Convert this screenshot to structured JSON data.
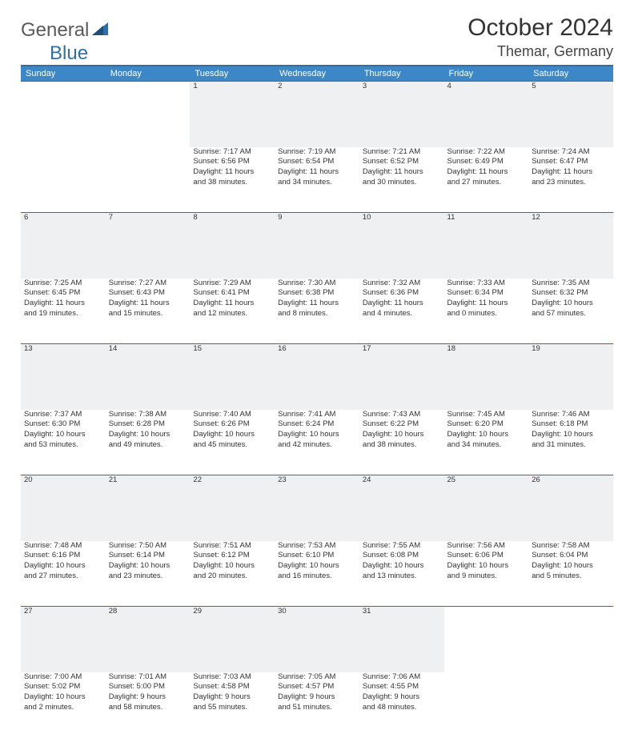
{
  "brand": {
    "part1": "General",
    "part2": "Blue"
  },
  "title": "October 2024",
  "location": "Themar, Germany",
  "colors": {
    "header_bg": "#3b87c8",
    "rule": "#2f6fa8",
    "daynum_bg": "#eef0f2",
    "text": "#333333",
    "muted": "#5a5a5a"
  },
  "dayNames": [
    "Sunday",
    "Monday",
    "Tuesday",
    "Wednesday",
    "Thursday",
    "Friday",
    "Saturday"
  ],
  "weeks": [
    {
      "nums": [
        "",
        "",
        "1",
        "2",
        "3",
        "4",
        "5"
      ],
      "cells": [
        null,
        null,
        {
          "sunrise": "Sunrise: 7:17 AM",
          "sunset": "Sunset: 6:56 PM",
          "day1": "Daylight: 11 hours",
          "day2": "and 38 minutes."
        },
        {
          "sunrise": "Sunrise: 7:19 AM",
          "sunset": "Sunset: 6:54 PM",
          "day1": "Daylight: 11 hours",
          "day2": "and 34 minutes."
        },
        {
          "sunrise": "Sunrise: 7:21 AM",
          "sunset": "Sunset: 6:52 PM",
          "day1": "Daylight: 11 hours",
          "day2": "and 30 minutes."
        },
        {
          "sunrise": "Sunrise: 7:22 AM",
          "sunset": "Sunset: 6:49 PM",
          "day1": "Daylight: 11 hours",
          "day2": "and 27 minutes."
        },
        {
          "sunrise": "Sunrise: 7:24 AM",
          "sunset": "Sunset: 6:47 PM",
          "day1": "Daylight: 11 hours",
          "day2": "and 23 minutes."
        }
      ]
    },
    {
      "nums": [
        "6",
        "7",
        "8",
        "9",
        "10",
        "11",
        "12"
      ],
      "cells": [
        {
          "sunrise": "Sunrise: 7:25 AM",
          "sunset": "Sunset: 6:45 PM",
          "day1": "Daylight: 11 hours",
          "day2": "and 19 minutes."
        },
        {
          "sunrise": "Sunrise: 7:27 AM",
          "sunset": "Sunset: 6:43 PM",
          "day1": "Daylight: 11 hours",
          "day2": "and 15 minutes."
        },
        {
          "sunrise": "Sunrise: 7:29 AM",
          "sunset": "Sunset: 6:41 PM",
          "day1": "Daylight: 11 hours",
          "day2": "and 12 minutes."
        },
        {
          "sunrise": "Sunrise: 7:30 AM",
          "sunset": "Sunset: 6:38 PM",
          "day1": "Daylight: 11 hours",
          "day2": "and 8 minutes."
        },
        {
          "sunrise": "Sunrise: 7:32 AM",
          "sunset": "Sunset: 6:36 PM",
          "day1": "Daylight: 11 hours",
          "day2": "and 4 minutes."
        },
        {
          "sunrise": "Sunrise: 7:33 AM",
          "sunset": "Sunset: 6:34 PM",
          "day1": "Daylight: 11 hours",
          "day2": "and 0 minutes."
        },
        {
          "sunrise": "Sunrise: 7:35 AM",
          "sunset": "Sunset: 6:32 PM",
          "day1": "Daylight: 10 hours",
          "day2": "and 57 minutes."
        }
      ]
    },
    {
      "nums": [
        "13",
        "14",
        "15",
        "16",
        "17",
        "18",
        "19"
      ],
      "cells": [
        {
          "sunrise": "Sunrise: 7:37 AM",
          "sunset": "Sunset: 6:30 PM",
          "day1": "Daylight: 10 hours",
          "day2": "and 53 minutes."
        },
        {
          "sunrise": "Sunrise: 7:38 AM",
          "sunset": "Sunset: 6:28 PM",
          "day1": "Daylight: 10 hours",
          "day2": "and 49 minutes."
        },
        {
          "sunrise": "Sunrise: 7:40 AM",
          "sunset": "Sunset: 6:26 PM",
          "day1": "Daylight: 10 hours",
          "day2": "and 45 minutes."
        },
        {
          "sunrise": "Sunrise: 7:41 AM",
          "sunset": "Sunset: 6:24 PM",
          "day1": "Daylight: 10 hours",
          "day2": "and 42 minutes."
        },
        {
          "sunrise": "Sunrise: 7:43 AM",
          "sunset": "Sunset: 6:22 PM",
          "day1": "Daylight: 10 hours",
          "day2": "and 38 minutes."
        },
        {
          "sunrise": "Sunrise: 7:45 AM",
          "sunset": "Sunset: 6:20 PM",
          "day1": "Daylight: 10 hours",
          "day2": "and 34 minutes."
        },
        {
          "sunrise": "Sunrise: 7:46 AM",
          "sunset": "Sunset: 6:18 PM",
          "day1": "Daylight: 10 hours",
          "day2": "and 31 minutes."
        }
      ]
    },
    {
      "nums": [
        "20",
        "21",
        "22",
        "23",
        "24",
        "25",
        "26"
      ],
      "cells": [
        {
          "sunrise": "Sunrise: 7:48 AM",
          "sunset": "Sunset: 6:16 PM",
          "day1": "Daylight: 10 hours",
          "day2": "and 27 minutes."
        },
        {
          "sunrise": "Sunrise: 7:50 AM",
          "sunset": "Sunset: 6:14 PM",
          "day1": "Daylight: 10 hours",
          "day2": "and 23 minutes."
        },
        {
          "sunrise": "Sunrise: 7:51 AM",
          "sunset": "Sunset: 6:12 PM",
          "day1": "Daylight: 10 hours",
          "day2": "and 20 minutes."
        },
        {
          "sunrise": "Sunrise: 7:53 AM",
          "sunset": "Sunset: 6:10 PM",
          "day1": "Daylight: 10 hours",
          "day2": "and 16 minutes."
        },
        {
          "sunrise": "Sunrise: 7:55 AM",
          "sunset": "Sunset: 6:08 PM",
          "day1": "Daylight: 10 hours",
          "day2": "and 13 minutes."
        },
        {
          "sunrise": "Sunrise: 7:56 AM",
          "sunset": "Sunset: 6:06 PM",
          "day1": "Daylight: 10 hours",
          "day2": "and 9 minutes."
        },
        {
          "sunrise": "Sunrise: 7:58 AM",
          "sunset": "Sunset: 6:04 PM",
          "day1": "Daylight: 10 hours",
          "day2": "and 5 minutes."
        }
      ]
    },
    {
      "nums": [
        "27",
        "28",
        "29",
        "30",
        "31",
        "",
        ""
      ],
      "cells": [
        {
          "sunrise": "Sunrise: 7:00 AM",
          "sunset": "Sunset: 5:02 PM",
          "day1": "Daylight: 10 hours",
          "day2": "and 2 minutes."
        },
        {
          "sunrise": "Sunrise: 7:01 AM",
          "sunset": "Sunset: 5:00 PM",
          "day1": "Daylight: 9 hours",
          "day2": "and 58 minutes."
        },
        {
          "sunrise": "Sunrise: 7:03 AM",
          "sunset": "Sunset: 4:58 PM",
          "day1": "Daylight: 9 hours",
          "day2": "and 55 minutes."
        },
        {
          "sunrise": "Sunrise: 7:05 AM",
          "sunset": "Sunset: 4:57 PM",
          "day1": "Daylight: 9 hours",
          "day2": "and 51 minutes."
        },
        {
          "sunrise": "Sunrise: 7:06 AM",
          "sunset": "Sunset: 4:55 PM",
          "day1": "Daylight: 9 hours",
          "day2": "and 48 minutes."
        },
        null,
        null
      ]
    }
  ]
}
